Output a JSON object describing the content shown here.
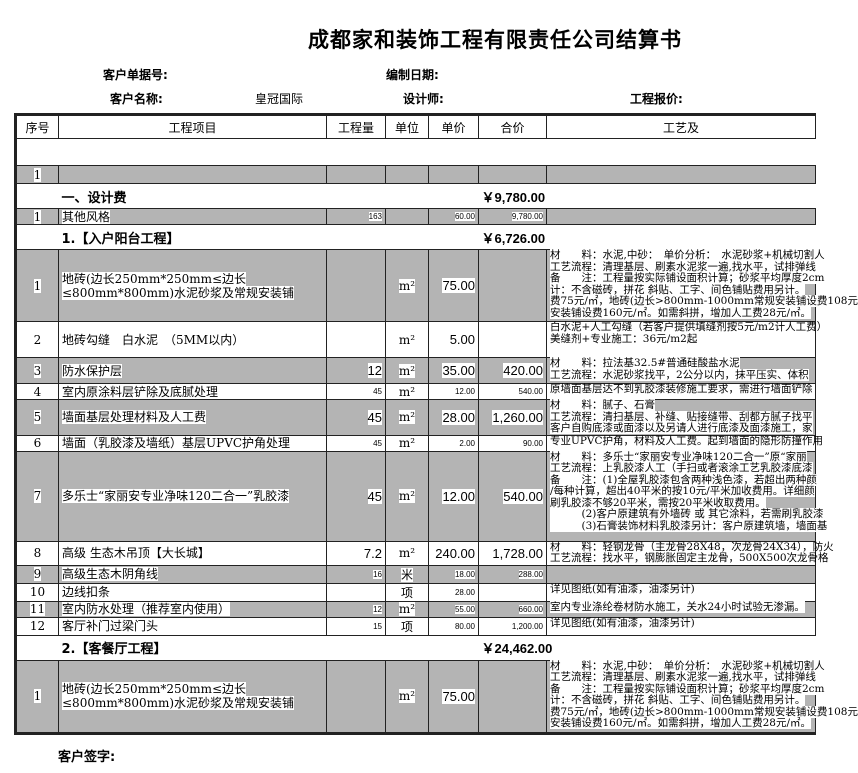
{
  "title": "成都家和装饰工程有限责任公司结算书",
  "meta": {
    "order_no_label": "客户单据号:",
    "date_label": "编制日期:",
    "customer_label": "客户名称:",
    "customer_value": "皇冠国际",
    "designer_label": "设计师:",
    "quote_label": "工程报价:"
  },
  "headers": [
    "序号",
    "工程项目",
    "工程量",
    "单位",
    "单价",
    "合价",
    "工艺及"
  ],
  "first_row_no": "1",
  "sections": [
    {
      "title": "一、设计费",
      "amount": "￥9,780.00",
      "rows": [
        {
          "no": "1",
          "item": "其他风格",
          "qty": "163",
          "unit": "",
          "price": "60.00",
          "total": "9,780.00",
          "desc": ""
        }
      ]
    },
    {
      "title": "1.【入户阳台工程】",
      "amount": "￥6,726.00",
      "rows": [
        {
          "no": "1",
          "item": "地砖(边长250mm*250mm≤边长≤800mm*800mm)水泥砂浆及常规安装铺",
          "qty": "",
          "unit": "m²",
          "price": "75.00",
          "total": "",
          "desc": "材　　料：水泥,中砂：　单价分析：　水泥砂浆+机械切割人\n工艺流程：清理基层、刷素水泥浆一遍,找水平，试排弹线\n备　　注：工程量按实际铺设面积计算；砂浆平均厚度2cm\n计：不含磁砖，拼花 斜贴、工字、间色铺贴费用另计。\n费75元/㎡，地砖(边长>800mm-1000mm常规安装铺设费108元\n安装铺设费160元/㎡。如需斜拼，增加人工费28元/㎡。"
        },
        {
          "no": "2",
          "item": "地砖勾缝　白水泥　（5MM以内）",
          "qty": "",
          "unit": "m²",
          "price": "5.00",
          "total": "",
          "desc": "白水泥+人工勾缝（若客户提供填缝剂按5元/m2计人工费）\n美缝剂+专业施工：36元/m2起"
        },
        {
          "no": "3",
          "item": "防水保护层",
          "qty": "12",
          "unit": "m²",
          "price": "35.00",
          "total": "420.00",
          "desc": "材　　料：拉法基32.5#普通硅酸盐水泥\n工艺流程：水泥砂浆找平，2公分以内，抹平压实、体积"
        },
        {
          "no": "4",
          "item": "室内原涂料层铲除及底腻处理",
          "qty": "45",
          "unit": "m²",
          "price": "12.00",
          "total": "540.00",
          "desc": "原墙面基层达不到乳胶漆装修施工要求，需进行墙面铲除"
        },
        {
          "no": "5",
          "item": "墙面基层处理材料及人工费",
          "qty": "45",
          "unit": "m²",
          "price": "28.00",
          "total": "1,260.00",
          "desc": "材　　料：腻子、石膏\n工艺流程：清扫基层、补缝、贴接缝带、刮都方腻子找平\n客户自购底漆或面漆以及另请人进行底漆及面漆施工，家"
        },
        {
          "no": "6",
          "item": "墙面（乳胶漆及墙纸）基层UPVC护角处理",
          "qty": "45",
          "unit": "m²",
          "price": "2.00",
          "total": "90.00",
          "desc": "专业UPVC护角，材料及人工费。起到墙面的隐形防撞作用"
        },
        {
          "no": "7",
          "item": "多乐士“家丽安专业净味120二合一”乳胶漆",
          "qty": "45",
          "unit": "m²",
          "price": "12.00",
          "total": "540.00",
          "desc": "材　　料：多乐士“家丽安专业净味120二合一”原“家丽\n工艺流程：上乳胶漆人工（手扫或者滚涂工艺乳胶漆底漆\n备　　注：(1)全屋乳胶漆包含两种浅色漆，若超出两种颜\n/每种计算，超出40平米的按10元/平米加收费用。详细颜\n刷乳胶漆不够20平米，需按20平米收取费用。\n　　　(2)客户原建筑有外墙砖 或 其它涂料，若需刷乳胶漆\n　　　(3)石膏装饰材料乳胶漆另计：客户原建筑墙，墙面基"
        },
        {
          "no": "8",
          "item": "高级 生态木吊顶【大长城】",
          "qty": "7.2",
          "unit": "m²",
          "price": "240.00",
          "total": "1,728.00",
          "desc": "材　　料：轻钢龙骨（主龙骨28X48，次龙骨24X34），防火\n工艺流程：找水平，钢膨胀固定主龙骨，500X500次龙骨格"
        },
        {
          "no": "9",
          "item": "高级生态木阴角线",
          "qty": "16",
          "unit": "米",
          "price": "18.00",
          "total": "288.00",
          "desc": ""
        },
        {
          "no": "10",
          "item": "边线扣条",
          "qty": "",
          "unit": "项",
          "price": "28.00",
          "total": "",
          "desc": "详见图纸(如有油漆，油漆另计)"
        },
        {
          "no": "11",
          "item": "室内防水处理（推荐室内使用）",
          "qty": "12",
          "unit": "m²",
          "price": "55.00",
          "total": "660.00",
          "desc": "室内专业涤纶卷材防水施工，关水24小时试验无渗漏。"
        },
        {
          "no": "12",
          "item": "客厅补门过梁门头",
          "qty": "15",
          "unit": "项",
          "price": "80.00",
          "total": "1,200.00",
          "desc": "详见图纸(如有油漆，油漆另计)"
        }
      ]
    },
    {
      "title": "2.【客餐厅工程】",
      "amount": "￥24,462.00",
      "rows": [
        {
          "no": "1",
          "item": "地砖(边长250mm*250mm≤边长≤800mm*800mm)水泥砂浆及常规安装铺",
          "qty": "",
          "unit": "m²",
          "price": "75.00",
          "total": "",
          "desc": "材　　料：水泥,中砂：　单价分析：　水泥砂浆+机械切割人\n工艺流程：清理基层、刷素水泥浆一遍,找水平，试排弹线\n备　　注：工程量按实际铺设面积计算；砂浆平均厚度2cm\n计：不含磁砖，拼花 斜贴、工字、间色铺贴费用另计。\n费75元/㎡，地砖(边长>800mm-1000mm常规安装铺设费108元\n安装铺设费160元/㎡。如需斜拼，增加人工费28元/㎡。"
        }
      ]
    }
  ],
  "signature_label": "客户签字:"
}
